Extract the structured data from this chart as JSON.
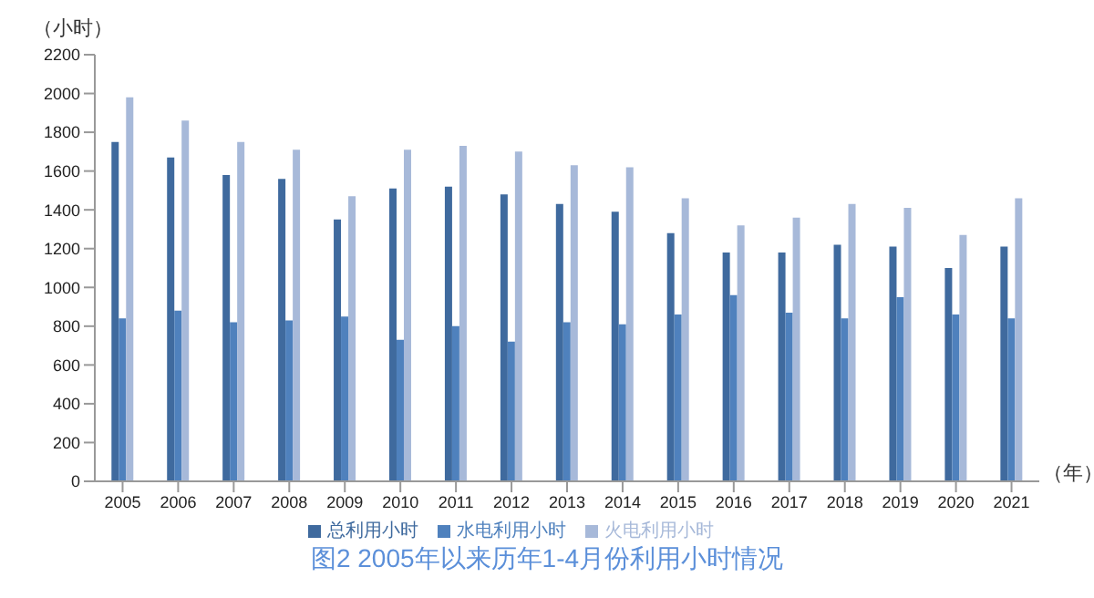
{
  "chart_data": {
    "type": "bar",
    "title": "图2  2005年以来历年1-4月份利用小时情况",
    "ylabel": "（小时）",
    "xlabel": "（年）",
    "categories": [
      "2005",
      "2006",
      "2007",
      "2008",
      "2009",
      "2010",
      "2011",
      "2012",
      "2013",
      "2014",
      "2015",
      "2016",
      "2017",
      "2018",
      "2019",
      "2020",
      "2021"
    ],
    "series": [
      {
        "name": "总利用小时",
        "color": "#3f6a9e",
        "values": [
          1750,
          1670,
          1580,
          1560,
          1350,
          1510,
          1520,
          1480,
          1430,
          1390,
          1280,
          1180,
          1180,
          1220,
          1210,
          1100,
          1210
        ]
      },
      {
        "name": "水电利用小时",
        "color": "#4f81bd",
        "values": [
          840,
          880,
          820,
          830,
          850,
          730,
          800,
          720,
          820,
          810,
          860,
          960,
          870,
          840,
          950,
          860,
          840
        ]
      },
      {
        "name": "火电利用小时",
        "color": "#a7b9d9",
        "values": [
          1980,
          1860,
          1750,
          1710,
          1470,
          1710,
          1730,
          1700,
          1630,
          1620,
          1460,
          1320,
          1360,
          1430,
          1410,
          1270,
          1460
        ]
      }
    ],
    "ylim": [
      0,
      2200
    ],
    "yticks": [
      0,
      200,
      400,
      600,
      800,
      1000,
      1200,
      1400,
      1600,
      1800,
      2000,
      2200
    ],
    "grid": false,
    "legend": "bottom"
  }
}
